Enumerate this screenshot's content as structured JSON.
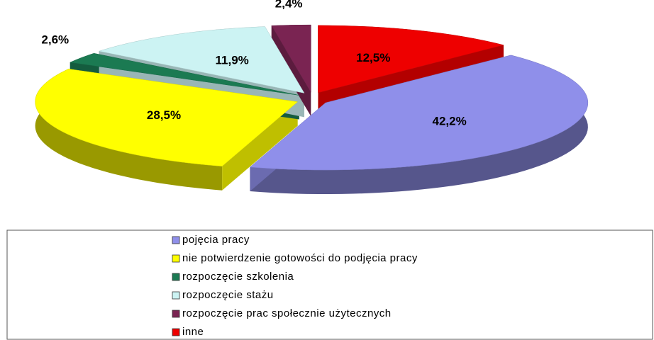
{
  "chart_data": {
    "type": "pie3d",
    "categories": [
      "pojęcia pracy",
      "nie potwierdzenie gotowości do podjęcia pracy",
      "rozpoczęcie szkolenia",
      "rozpoczęcie stażu",
      "rozpoczęcie prac społecznie użytecznych",
      "inne"
    ],
    "values": [
      42.2,
      28.5,
      2.6,
      11.9,
      2.4,
      12.5
    ],
    "value_labels": [
      "42,2%",
      "28,5%",
      "2,6%",
      "11,9%",
      "2,4%",
      "12,5%"
    ],
    "colors": [
      "#8f8fea",
      "#ffff00",
      "#1b7a52",
      "#ccf3f3",
      "#7a2452",
      "#ee0000"
    ]
  }
}
